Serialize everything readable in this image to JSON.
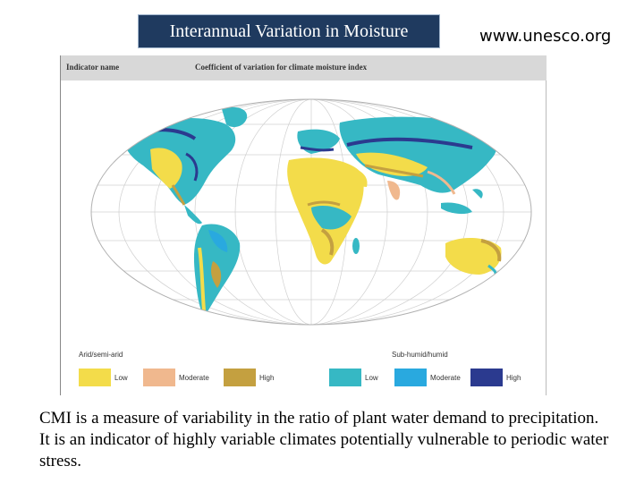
{
  "title": "Interannual Variation in Moisture",
  "source_url": "www.unesco.org",
  "figure": {
    "header_left": "Indicator name",
    "header_right": "Coefficient of variation for climate moisture index",
    "legend": {
      "arid_group": "Arid/semi-arid",
      "humid_group": "Sub-humid/humid",
      "arid_items": [
        {
          "label": "Low",
          "color": "#f3dc4a"
        },
        {
          "label": "Moderate",
          "color": "#f0b88e"
        },
        {
          "label": "High",
          "color": "#c4a040"
        }
      ],
      "humid_items": [
        {
          "label": "Low",
          "color": "#36b8c4"
        },
        {
          "label": "Moderate",
          "color": "#29a9df"
        },
        {
          "label": "High",
          "color": "#2b3a8f"
        }
      ]
    }
  },
  "caption": "CMI is a measure of variability in the ratio of plant water demand to precipitation. It is an indicator of highly variable climates potentially vulnerable to periodic water stress."
}
